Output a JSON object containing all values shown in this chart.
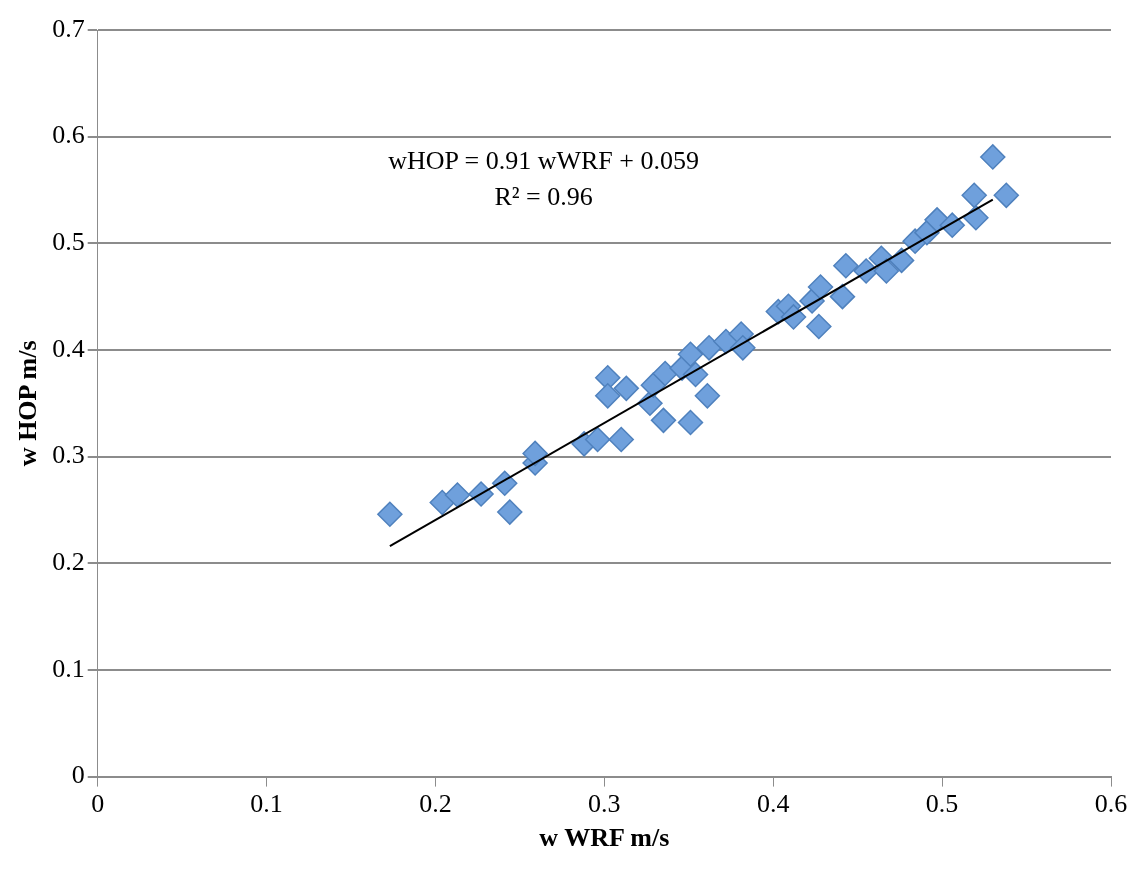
{
  "chart_data": {
    "type": "scatter",
    "xlabel": "w WRF m/s",
    "ylabel": "w HOP m/s",
    "annotations": [
      "wHOP = 0.91 wWRF + 0.059",
      "R² = 0.96"
    ],
    "xlim": [
      0,
      0.6
    ],
    "xticks": [
      0,
      0.1,
      0.2,
      0.3,
      0.4,
      0.5,
      0.6
    ],
    "ylim": [
      0,
      0.7
    ],
    "yticks": [
      0,
      0.1,
      0.2,
      0.3,
      0.4,
      0.5,
      0.6,
      0.7
    ],
    "grid": "y",
    "legend": false,
    "marker": "diamond",
    "series": [
      {
        "color": "#6fa0dc",
        "x": [
          0.173,
          0.204,
          0.213,
          0.227,
          0.241,
          0.244,
          0.259,
          0.259,
          0.288,
          0.296,
          0.31,
          0.302,
          0.302,
          0.313,
          0.327,
          0.329,
          0.335,
          0.351,
          0.336,
          0.346,
          0.351,
          0.354,
          0.361,
          0.362,
          0.372,
          0.381,
          0.382,
          0.403,
          0.409,
          0.412,
          0.423,
          0.428,
          0.427,
          0.441,
          0.443,
          0.455,
          0.464,
          0.467,
          0.476,
          0.484,
          0.491,
          0.497,
          0.506,
          0.52,
          0.519,
          0.53,
          0.538
        ],
        "values": [
          0.246,
          0.257,
          0.264,
          0.265,
          0.275,
          0.248,
          0.294,
          0.303,
          0.312,
          0.316,
          0.316,
          0.374,
          0.357,
          0.364,
          0.35,
          0.367,
          0.334,
          0.332,
          0.378,
          0.383,
          0.396,
          0.377,
          0.357,
          0.402,
          0.408,
          0.415,
          0.402,
          0.436,
          0.441,
          0.431,
          0.446,
          0.459,
          0.422,
          0.45,
          0.479,
          0.474,
          0.486,
          0.474,
          0.484,
          0.502,
          0.51,
          0.522,
          0.517,
          0.524,
          0.545,
          0.581,
          0.545
        ]
      },
      {
        "type": "line",
        "color": "#000000",
        "marker": "none",
        "x": [
          0.173,
          0.53
        ],
        "values": [
          0.216,
          0.541
        ]
      }
    ]
  }
}
